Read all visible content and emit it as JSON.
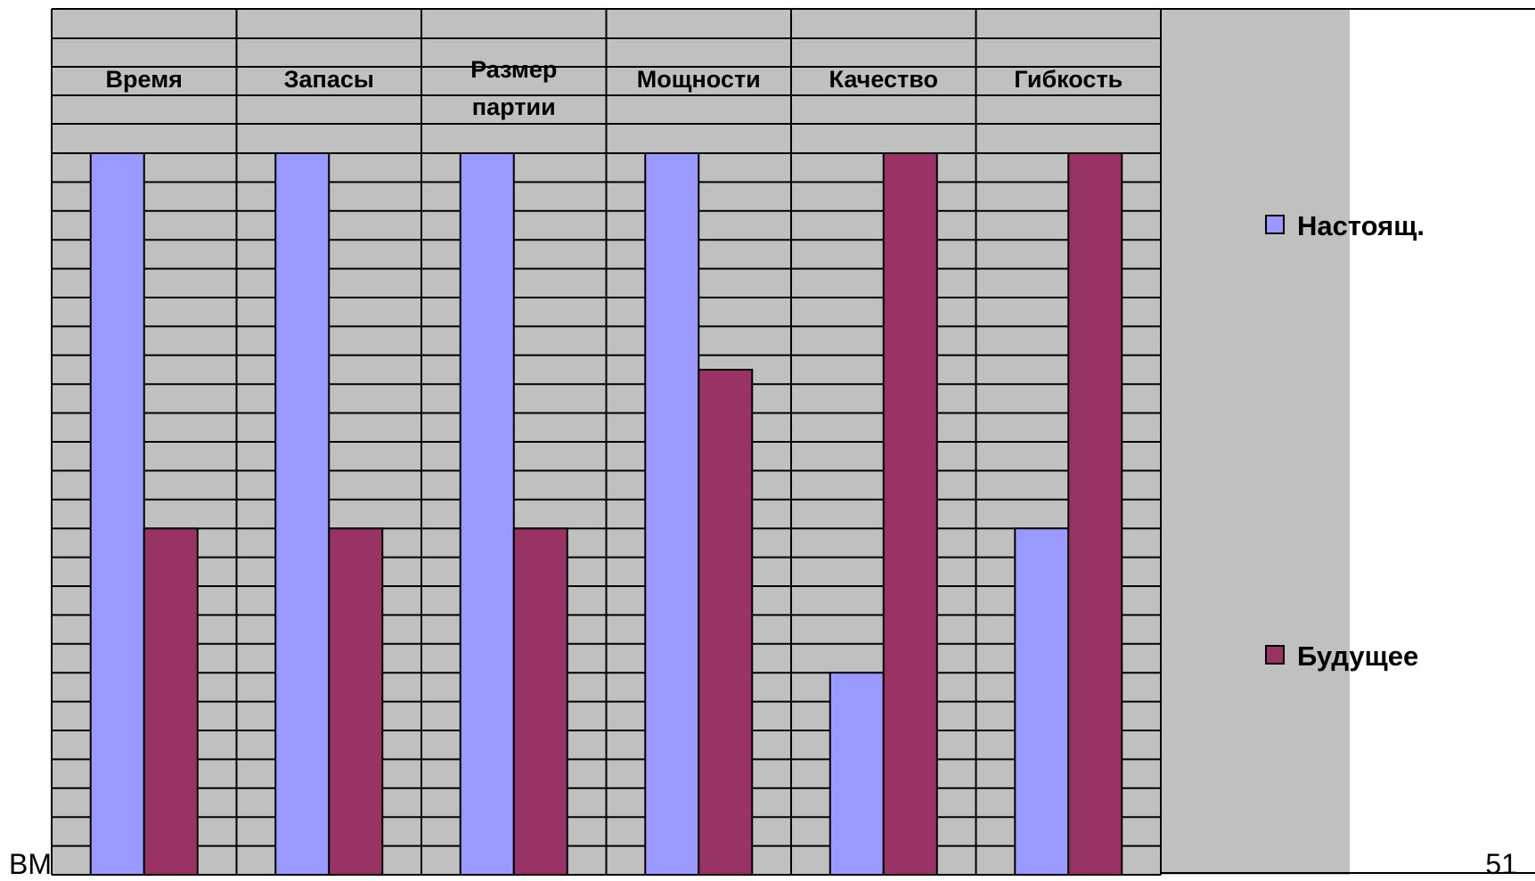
{
  "chart_data": {
    "type": "bar",
    "categories": [
      "Время",
      "Запасы",
      [
        "Размер",
        "партии"
      ],
      "Мощности",
      "Качество",
      "Гибкость"
    ],
    "series": [
      {
        "name": "Настоящ.",
        "values": [
          100,
          100,
          100,
          100,
          28,
          48
        ]
      },
      {
        "name": "Будущее",
        "values": [
          48,
          48,
          48,
          70,
          100,
          100
        ]
      }
    ],
    "ylim": [
      0,
      100
    ],
    "legend_position": "right",
    "colors": {
      "series": [
        "#9999ff",
        "#993366"
      ],
      "plot_background": "#c0c0c0",
      "grid": "#000000"
    }
  },
  "footer": {
    "left_text": "BM",
    "page_number": "51"
  }
}
